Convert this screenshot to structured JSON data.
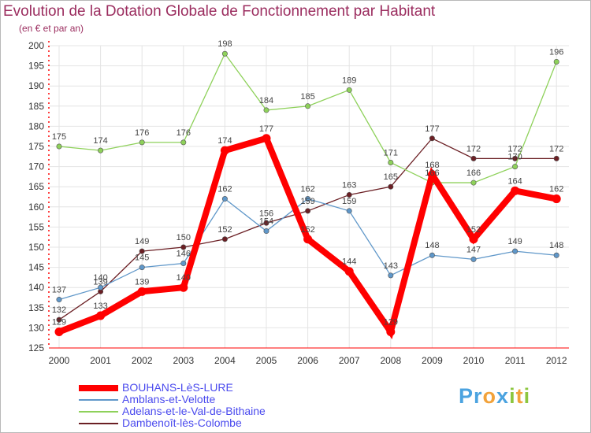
{
  "title": "Evolution de la Dotation Globale de Fonctionnement par Habitant",
  "subtitle": "(en € et par an)",
  "colors": {
    "title": "#9b2d5f",
    "axis": "#ff0000",
    "grid": "#e4e4e4",
    "legend_text": "#4a4aee"
  },
  "chart_data": {
    "type": "line",
    "title": "Evolution de la Dotation Globale de Fonctionnement par Habitant",
    "subtitle": "(en € et par an)",
    "xlabel": "",
    "ylabel": "",
    "ylim": [
      125,
      200
    ],
    "y_ticks": [
      125,
      130,
      135,
      140,
      145,
      150,
      155,
      160,
      165,
      170,
      175,
      180,
      185,
      190,
      195,
      200
    ],
    "categories": [
      "2000",
      "2001",
      "2002",
      "2003",
      "2004",
      "2005",
      "2006",
      "2007",
      "2008",
      "2009",
      "2010",
      "2011",
      "2012"
    ],
    "grid": true,
    "legend_position": "bottom-left",
    "series": [
      {
        "name": "Dambenoît-lès-Colombe",
        "color": "#6b1f24",
        "values": [
          132,
          139,
          149,
          150,
          152,
          156,
          159,
          163,
          165,
          177,
          172,
          172,
          172
        ]
      },
      {
        "name": "Adelans-et-le-Val-de-Bithaine",
        "color": "#8ed15a",
        "values": [
          175,
          174,
          176,
          176,
          198,
          184,
          185,
          189,
          171,
          166,
          166,
          170,
          196
        ]
      },
      {
        "name": "Amblans-et-Velotte",
        "color": "#5f97c9",
        "values": [
          137,
          140,
          145,
          146,
          162,
          154,
          162,
          159,
          143,
          148,
          147,
          149,
          148
        ]
      },
      {
        "name": "BOUHANS-LèS-LURE",
        "color": "#ff0000",
        "values": [
          129,
          133,
          139,
          140,
          174,
          177,
          152,
          144,
          129,
          168,
          152,
          164,
          162
        ]
      }
    ]
  },
  "legend": [
    {
      "label": "BOUHANS-LèS-LURE",
      "color": "#ff0000"
    },
    {
      "label": "Amblans-et-Velotte",
      "color": "#5f97c9"
    },
    {
      "label": "Adelans-et-le-Val-de-Bithaine",
      "color": "#8ed15a"
    },
    {
      "label": "Dambenoît-lès-Colombe",
      "color": "#6b1f24"
    }
  ],
  "logo": {
    "letters": [
      "P",
      "r",
      "o",
      "x",
      "i",
      "t",
      "i"
    ],
    "colors": [
      "#4ba3e0",
      "#4ba3e0",
      "#f2a23a",
      "#4ba3e0",
      "#8cc63f",
      "#f2a23a",
      "#8cc63f"
    ]
  }
}
